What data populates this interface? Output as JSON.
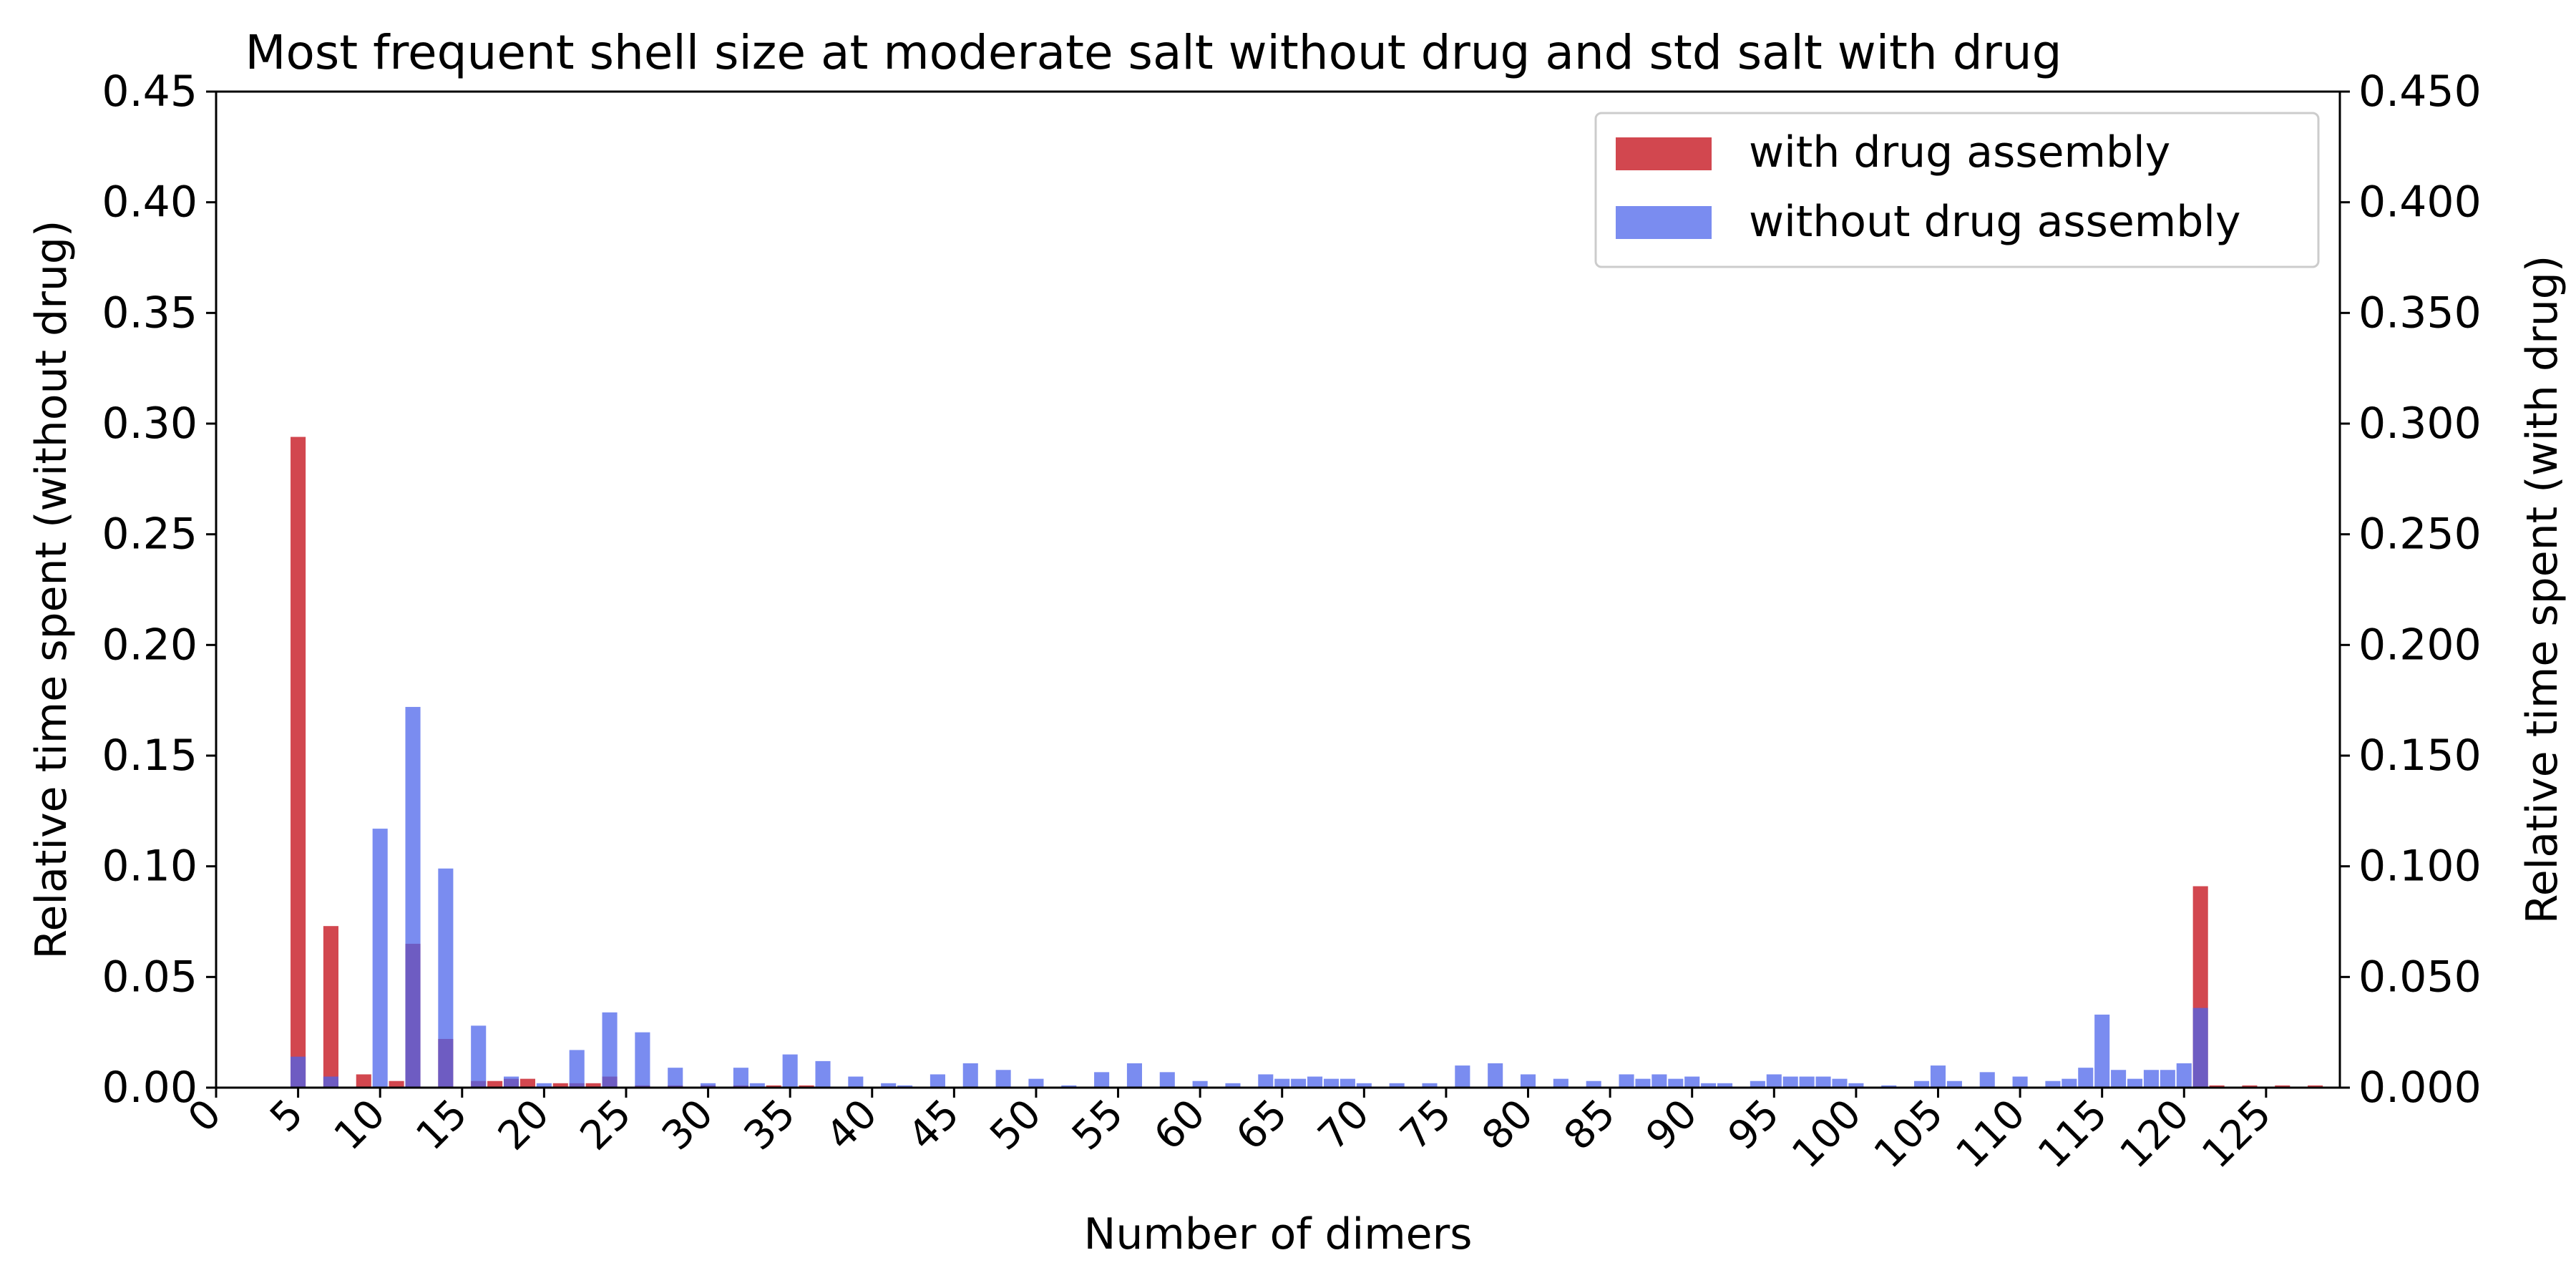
{
  "chart_data": {
    "type": "bar",
    "title": "Most frequent shell size at moderate salt without drug  and std salt with drug",
    "xlabel": "Number of dimers",
    "ylabel_left": "Relative time spent (without drug)",
    "ylabel_right": "Relative time spent (with drug)",
    "xlim": [
      0,
      129.5
    ],
    "ylim_left": [
      0,
      0.45
    ],
    "ylim_right": [
      0,
      0.45
    ],
    "x_ticks": [
      "0",
      "5",
      "10",
      "15",
      "20",
      "25",
      "30",
      "35",
      "40",
      "45",
      "50",
      "55",
      "60",
      "65",
      "70",
      "75",
      "80",
      "85",
      "90",
      "95",
      "100",
      "105",
      "110",
      "115",
      "120",
      "125"
    ],
    "y_ticks_left": [
      "0.00",
      "0.05",
      "0.10",
      "0.15",
      "0.20",
      "0.25",
      "0.30",
      "0.35",
      "0.40",
      "0.45"
    ],
    "y_ticks_right": [
      "0.000",
      "0.050",
      "0.100",
      "0.150",
      "0.200",
      "0.250",
      "0.300",
      "0.350",
      "0.400",
      "0.450"
    ],
    "legend_position": "top-right",
    "grid": false,
    "series": [
      {
        "name": "with drug assembly",
        "color": "#c81e28",
        "x": [
          5,
          7,
          9,
          11,
          12,
          14,
          16,
          17,
          18,
          19,
          21,
          22,
          23,
          24,
          26,
          28,
          30,
          32,
          34,
          36,
          121,
          122,
          124,
          126,
          128
        ],
        "values": [
          0.294,
          0.073,
          0.006,
          0.003,
          0.065,
          0.022,
          0.003,
          0.003,
          0.004,
          0.004,
          0.002,
          0.002,
          0.002,
          0.005,
          0.001,
          0.001,
          0.001,
          0.001,
          0.001,
          0.001,
          0.091,
          0.001,
          0.001,
          0.001,
          0.001
        ]
      },
      {
        "name": "without drug assembly",
        "color": "#4b64eb",
        "x": [
          5,
          7,
          10,
          12,
          14,
          16,
          18,
          20,
          22,
          24,
          26,
          28,
          30,
          32,
          33,
          35,
          37,
          39,
          41,
          42,
          44,
          46,
          48,
          50,
          52,
          54,
          56,
          58,
          60,
          62,
          64,
          65,
          66,
          67,
          68,
          69,
          70,
          72,
          74,
          76,
          78,
          80,
          82,
          84,
          86,
          87,
          88,
          89,
          90,
          91,
          92,
          94,
          95,
          96,
          97,
          98,
          99,
          100,
          102,
          104,
          105,
          106,
          108,
          110,
          112,
          113,
          114,
          115,
          116,
          117,
          118,
          119,
          120,
          121
        ],
        "values": [
          0.014,
          0.005,
          0.117,
          0.172,
          0.099,
          0.028,
          0.005,
          0.002,
          0.017,
          0.034,
          0.025,
          0.009,
          0.002,
          0.009,
          0.002,
          0.015,
          0.012,
          0.005,
          0.002,
          0.001,
          0.006,
          0.011,
          0.008,
          0.004,
          0.001,
          0.007,
          0.011,
          0.007,
          0.003,
          0.002,
          0.006,
          0.004,
          0.004,
          0.005,
          0.004,
          0.004,
          0.002,
          0.002,
          0.002,
          0.01,
          0.011,
          0.006,
          0.004,
          0.003,
          0.006,
          0.004,
          0.006,
          0.004,
          0.005,
          0.002,
          0.002,
          0.003,
          0.006,
          0.005,
          0.005,
          0.005,
          0.004,
          0.002,
          0.001,
          0.003,
          0.01,
          0.003,
          0.007,
          0.005,
          0.003,
          0.004,
          0.009,
          0.033,
          0.008,
          0.004,
          0.008,
          0.008,
          0.011,
          0.036
        ]
      }
    ]
  }
}
